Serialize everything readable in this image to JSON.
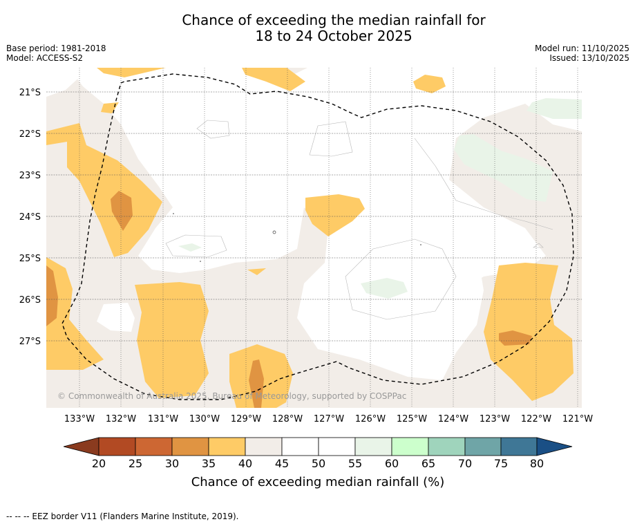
{
  "title": {
    "line1": "Chance of exceeding the median rainfall for",
    "line2": "18 to 24 October 2025"
  },
  "meta": {
    "base_period": "Base period: 1981-2018",
    "model": "Model: ACCESS-S2",
    "model_run": "Model run: 11/10/2025",
    "issued": "Issued: 13/10/2025"
  },
  "map": {
    "lat_labels": [
      "21°S",
      "22°S",
      "23°S",
      "24°S",
      "25°S",
      "26°S",
      "27°S"
    ],
    "lon_labels": [
      "133°W",
      "132°W",
      "131°W",
      "130°W",
      "129°W",
      "128°W",
      "127°W",
      "126°W",
      "125°W",
      "124°W",
      "123°W",
      "122°W",
      "121°W"
    ],
    "copyright": "© Commonwealth of Australia 2025, Bureau of Meteorology, supported by COSPPac"
  },
  "colorbar": {
    "ticks": [
      "20",
      "25",
      "30",
      "35",
      "40",
      "45",
      "50",
      "55",
      "60",
      "65",
      "70",
      "75",
      "80"
    ],
    "label": "Chance of exceeding median rainfall (%)",
    "colors": {
      "below20": "#8a3b1f",
      "c20_25": "#b24a23",
      "c25_30": "#cd6733",
      "c30_35": "#e09442",
      "c35_40": "#fecb66",
      "c40_45": "#f2ede8",
      "c45_50": "#ffffff",
      "c50_55": "#ffffff",
      "c55_60": "#e9f4e8",
      "c60_65": "#ccffcc",
      "c65_70": "#9fd4bc",
      "c70_75": "#6fa5a7",
      "c75_80": "#3f7796",
      "above80": "#1a4f85"
    }
  },
  "footer": {
    "legend": "--  --  -- EEZ border V11 (Flanders Marine Institute, 2019)."
  }
}
